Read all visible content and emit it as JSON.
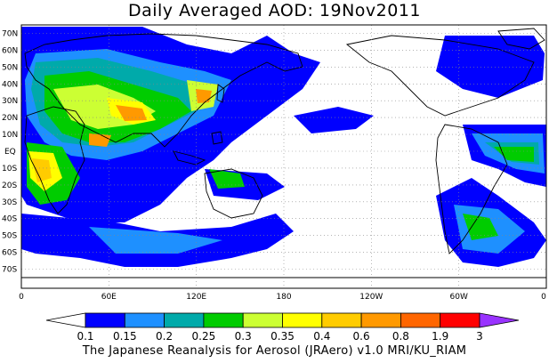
{
  "title": "Daily Averaged AOD: 19Nov2011",
  "footer": "The Japanese Reanalysis for Aerosol (JRAero) v1.0 MRI/KU_RIAM",
  "map": {
    "lat_labels": [
      "70N",
      "60N",
      "50N",
      "40N",
      "30N",
      "20N",
      "10N",
      "EQ",
      "10S",
      "20S",
      "30S",
      "40S",
      "50S",
      "60S",
      "70S"
    ],
    "lon_labels": [
      "0",
      "60E",
      "120E",
      "180",
      "120W",
      "60W",
      "0"
    ],
    "ocean_color": "#ffffff",
    "land_outline_color": "#000000",
    "grid": "dotted"
  },
  "colorbar": {
    "labels": [
      "0.1",
      "0.15",
      "0.2",
      "0.25",
      "0.3",
      "0.35",
      "0.4",
      "0.6",
      "0.8",
      "1.9",
      "3"
    ],
    "colors": [
      "#ffffff",
      "#0000ff",
      "#1e90ff",
      "#00aaaa",
      "#00cc00",
      "#ccff33",
      "#ffff00",
      "#ffcc00",
      "#ff9900",
      "#ff6600",
      "#ff0000",
      "#9933ff"
    ]
  }
}
